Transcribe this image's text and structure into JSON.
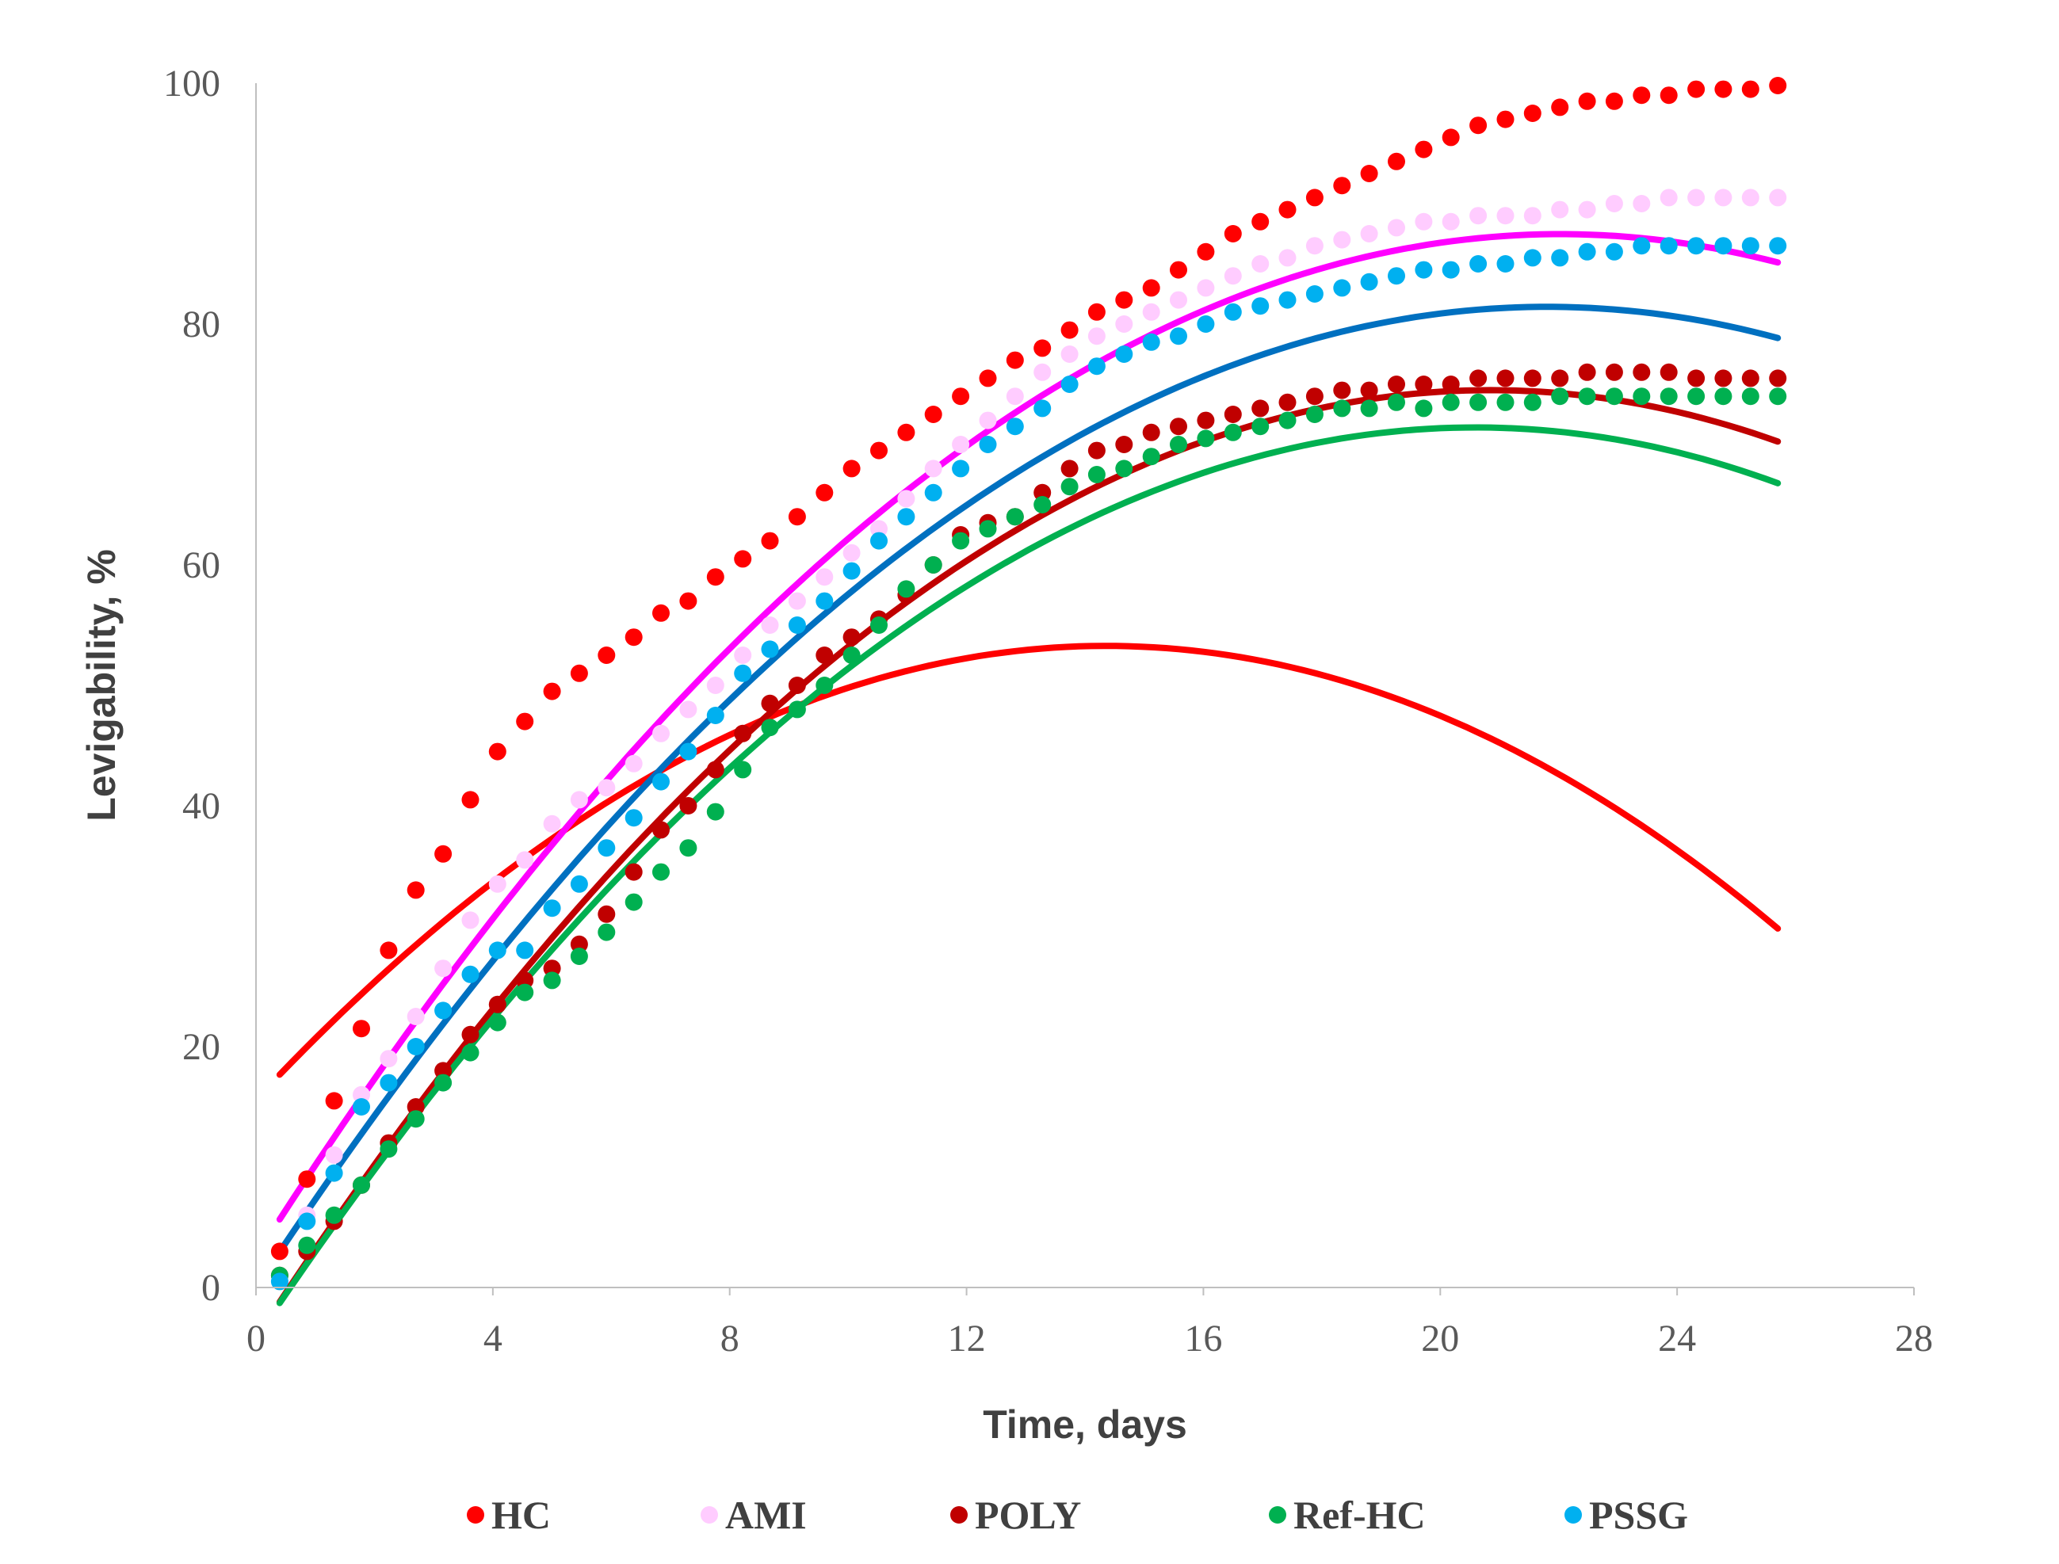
{
  "chart_data": {
    "type": "scatter",
    "title": "",
    "xlabel": "Time, days",
    "ylabel": "Levigability, %",
    "xlim": [
      0,
      28
    ],
    "ylim": [
      0,
      100
    ],
    "xticks": [
      0,
      4,
      8,
      12,
      16,
      20,
      24,
      28
    ],
    "yticks": [
      0,
      20,
      40,
      60,
      80,
      100
    ],
    "x_tick_labels": [
      "0",
      "4",
      "8",
      "12",
      "16",
      "20",
      "24",
      "28"
    ],
    "y_tick_labels": [
      "0",
      "20",
      "40",
      "60",
      "80",
      "100"
    ],
    "legend_position": "bottom",
    "grid": false,
    "x": [
      0.4,
      0.86,
      1.32,
      1.78,
      2.24,
      2.7,
      3.16,
      3.62,
      4.08,
      4.54,
      5.0,
      5.46,
      5.92,
      6.38,
      6.84,
      7.3,
      7.76,
      8.22,
      8.68,
      9.14,
      9.6,
      10.06,
      10.52,
      10.98,
      11.44,
      11.9,
      12.36,
      12.82,
      13.28,
      13.74,
      14.2,
      14.66,
      15.12,
      15.58,
      16.04,
      16.5,
      16.96,
      17.42,
      17.88,
      18.34,
      18.8,
      19.26,
      19.72,
      20.18,
      20.64,
      21.1,
      21.56,
      22.02,
      22.48,
      22.94,
      23.4,
      23.86,
      24.32,
      24.78,
      25.24,
      25.7
    ],
    "series": [
      {
        "name": "HC",
        "color": "#ff0000",
        "values": [
          3,
          9,
          15.5,
          21.5,
          28,
          33,
          36,
          40.5,
          44.5,
          47,
          49.5,
          51,
          52.5,
          54,
          56,
          57,
          59,
          60.5,
          62,
          64,
          66,
          68,
          69.5,
          71,
          72.5,
          74,
          75.5,
          77,
          78,
          79.5,
          81,
          82,
          83,
          84.5,
          86,
          87.5,
          88.5,
          89.5,
          90.5,
          91.5,
          92.5,
          93.5,
          94.5,
          95.5,
          96.5,
          97,
          97.5,
          98,
          98.5,
          98.5,
          99,
          99,
          99.5,
          99.5,
          99.5,
          99.8
        ],
        "fit": [
          -0.1826,
          5.2457,
          15.6
        ]
      },
      {
        "name": "AMI",
        "color": "#ffccff",
        "values": [
          1,
          6,
          11,
          16,
          19,
          22.5,
          26.5,
          30.5,
          33.5,
          35.5,
          38.5,
          40.5,
          41.5,
          43.5,
          46,
          48,
          50,
          52.5,
          55,
          57,
          59,
          61,
          63,
          65.5,
          68,
          70,
          72,
          74,
          76,
          77.5,
          79,
          80,
          81,
          82,
          83,
          84,
          85,
          85.5,
          86.5,
          87,
          87.5,
          88,
          88.5,
          88.5,
          89,
          89,
          89,
          89.5,
          89.5,
          90,
          90,
          90.5,
          90.5,
          90.5,
          90.5,
          90.5
        ],
        "fit": [
          -0.1749,
          7.7054,
          2.6
        ]
      },
      {
        "name": "POLY",
        "color": "#c00000",
        "values": [
          1,
          3,
          5.5,
          8.5,
          12,
          15,
          18,
          21,
          23.5,
          25.5,
          26.5,
          28.5,
          31,
          34.5,
          38,
          40,
          43,
          46,
          48.5,
          50,
          52.5,
          54,
          55.5,
          57.5,
          60,
          62.5,
          63.5,
          64,
          66,
          68,
          69.5,
          70,
          71,
          71.5,
          72,
          72.5,
          73,
          73.5,
          74,
          74.5,
          74.5,
          75,
          75,
          75,
          75.5,
          75.5,
          75.5,
          75.5,
          76,
          76,
          76,
          76,
          75.5,
          75.5,
          75.5,
          75.5
        ],
        "fit": [
          -0.1811,
          7.551,
          -4.2
        ]
      },
      {
        "name": "Ref-HC",
        "color": "#00b050",
        "values": [
          1,
          3.5,
          6,
          8.5,
          11.5,
          14,
          17,
          19.5,
          22,
          24.5,
          25.5,
          27.5,
          29.5,
          32,
          34.5,
          36.5,
          39.5,
          43,
          46.5,
          48,
          50,
          52.5,
          55,
          58,
          60,
          62,
          63,
          64,
          65,
          66.5,
          67.5,
          68,
          69,
          70,
          70.5,
          71,
          71.5,
          72,
          72.5,
          73,
          73,
          73.5,
          73,
          73.5,
          73.5,
          73.5,
          73.5,
          74,
          74,
          74,
          74,
          74,
          74,
          74,
          74,
          74
        ],
        "fit": [
          -0.1782,
          7.3416,
          -4.2
        ]
      },
      {
        "name": "PSSG",
        "color": "#00b0f0",
        "values": [
          0.5,
          5.5,
          9.5,
          15,
          17,
          20,
          23,
          26,
          28,
          28,
          31.5,
          33.5,
          36.5,
          39,
          42,
          44.5,
          47.5,
          51,
          53,
          55,
          57,
          59.5,
          62,
          64,
          66,
          68,
          70,
          71.5,
          73,
          75,
          76.5,
          77.5,
          78.5,
          79,
          80,
          81,
          81.5,
          82,
          82.5,
          83,
          83.5,
          84,
          84.5,
          84.5,
          85,
          85,
          85.5,
          85.5,
          86,
          86,
          86.5,
          86.5,
          86.5,
          86.5,
          86.5,
          86.5
        ],
        "fit": [
          -0.1712,
          7.4675,
          0
        ]
      }
    ],
    "trendlines": [
      {
        "series": "HC",
        "color": "#ff0000",
        "type": "polynomial",
        "x_range": [
          0.4,
          25.7
        ]
      },
      {
        "series": "AMI",
        "color": "#ff00ff",
        "type": "polynomial",
        "x_range": [
          0.4,
          25.7
        ]
      },
      {
        "series": "POLY",
        "color": "#c00000",
        "type": "polynomial",
        "x_range": [
          0.4,
          25.7
        ]
      },
      {
        "series": "Ref-HC",
        "color": "#00b050",
        "type": "polynomial",
        "x_range": [
          0.4,
          25.7
        ]
      },
      {
        "series": "PSSG",
        "color": "#0070c0",
        "type": "polynomial",
        "x_range": [
          0.4,
          25.7
        ]
      }
    ]
  }
}
